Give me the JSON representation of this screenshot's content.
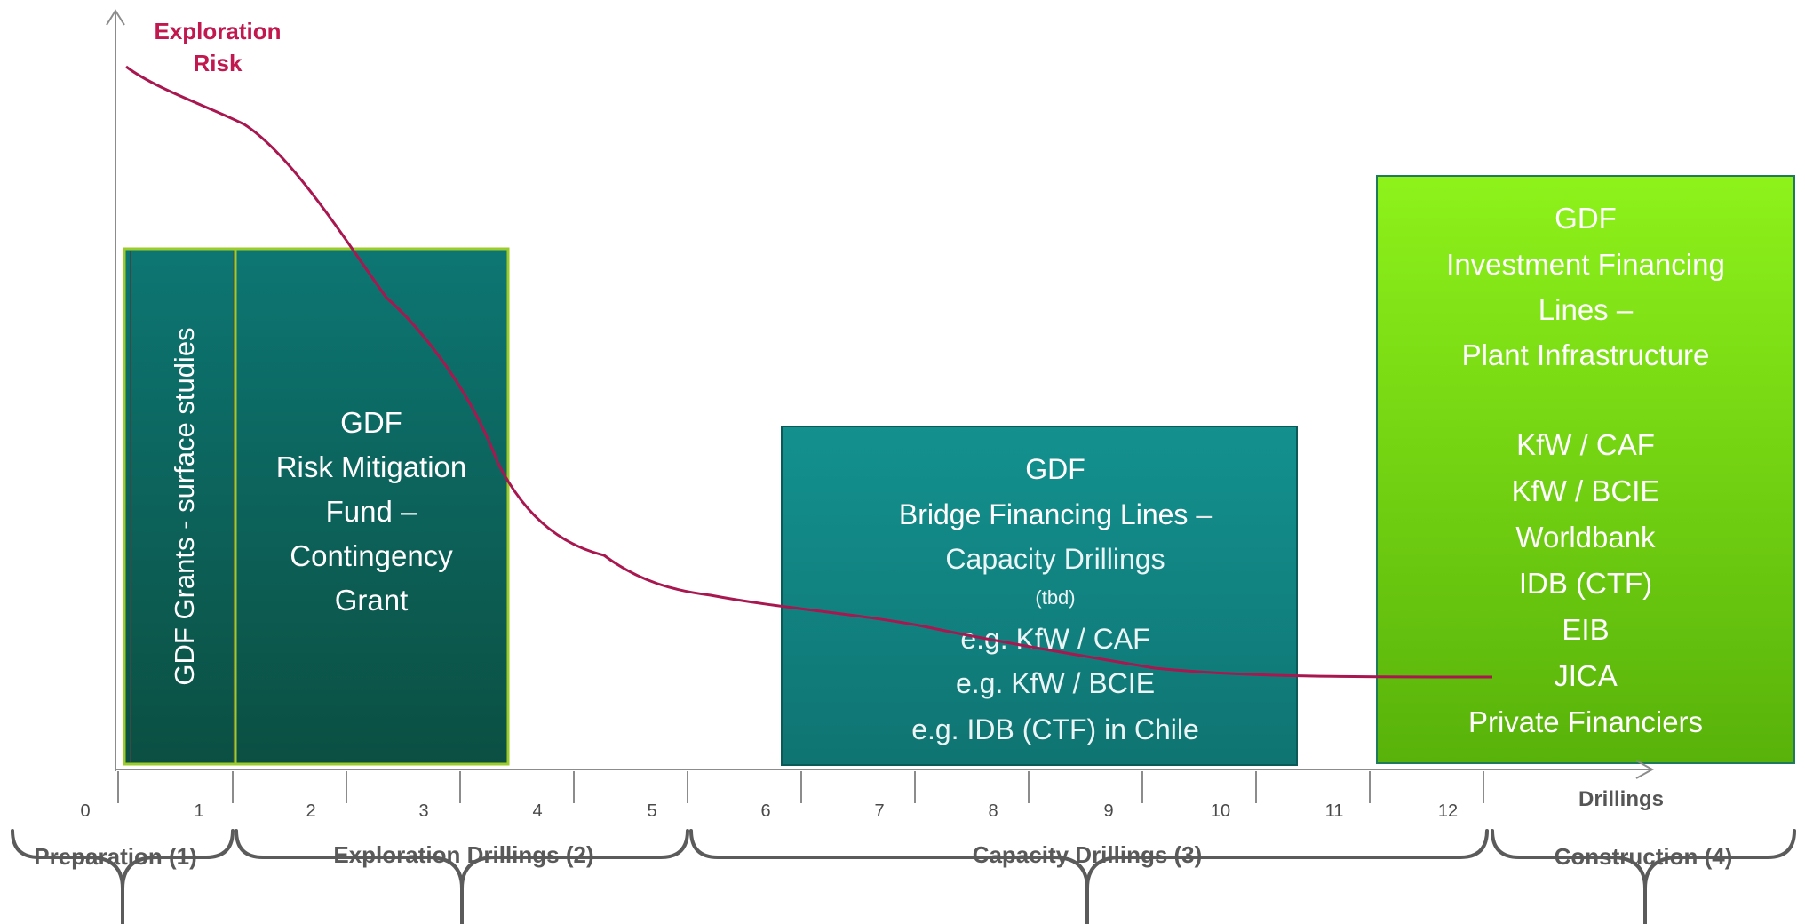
{
  "axis": {
    "y_label_line1": "Exploration",
    "y_label_line2": "Risk",
    "x_label": "Drillings",
    "ticks": [
      "0",
      "1",
      "2",
      "3",
      "4",
      "5",
      "6",
      "7",
      "8",
      "9",
      "10",
      "11",
      "12"
    ]
  },
  "boxes": {
    "grants": {
      "text": "GDF Grants  - surface studies"
    },
    "risk": {
      "line1": "GDF",
      "line2": "Risk Mitigation",
      "line3": "Fund –",
      "line4": "Contingency",
      "line5": "Grant"
    },
    "bridge": {
      "line1": "GDF",
      "line2": "Bridge Financing Lines",
      "line2_suffix": " –",
      "line3": "Capacity Drillings",
      "line4": "(tbd)",
      "line5": "e.g. KfW / CAF",
      "line6": "e.g. KfW / BCIE",
      "line7": "e.g. IDB (CTF) in Chile"
    },
    "invest": {
      "line1": "GDF",
      "line2": "Investment Financing",
      "line3": "Lines –",
      "line4": "Plant Infrastructure",
      "items": [
        "KfW / CAF",
        "KfW / BCIE",
        "Worldbank",
        "IDB (CTF)",
        "EIB",
        "JICA",
        "Private Financiers"
      ]
    }
  },
  "phases": [
    "Preparation (1)",
    "Exploration Drillings (2)",
    "Capacity Drillings (3)",
    "Construction (4)"
  ],
  "colors": {
    "curve": "#a8174f",
    "y_label": "#c0184f",
    "axis": "#8c8c8c",
    "brace": "#5b5b5b",
    "dark_teal_top": "#0d7673",
    "dark_teal_bottom": "#0b4f42",
    "bridge_teal": "#128a8a",
    "green_top": "#8ef21a",
    "green_bottom": "#5ab30a"
  }
}
